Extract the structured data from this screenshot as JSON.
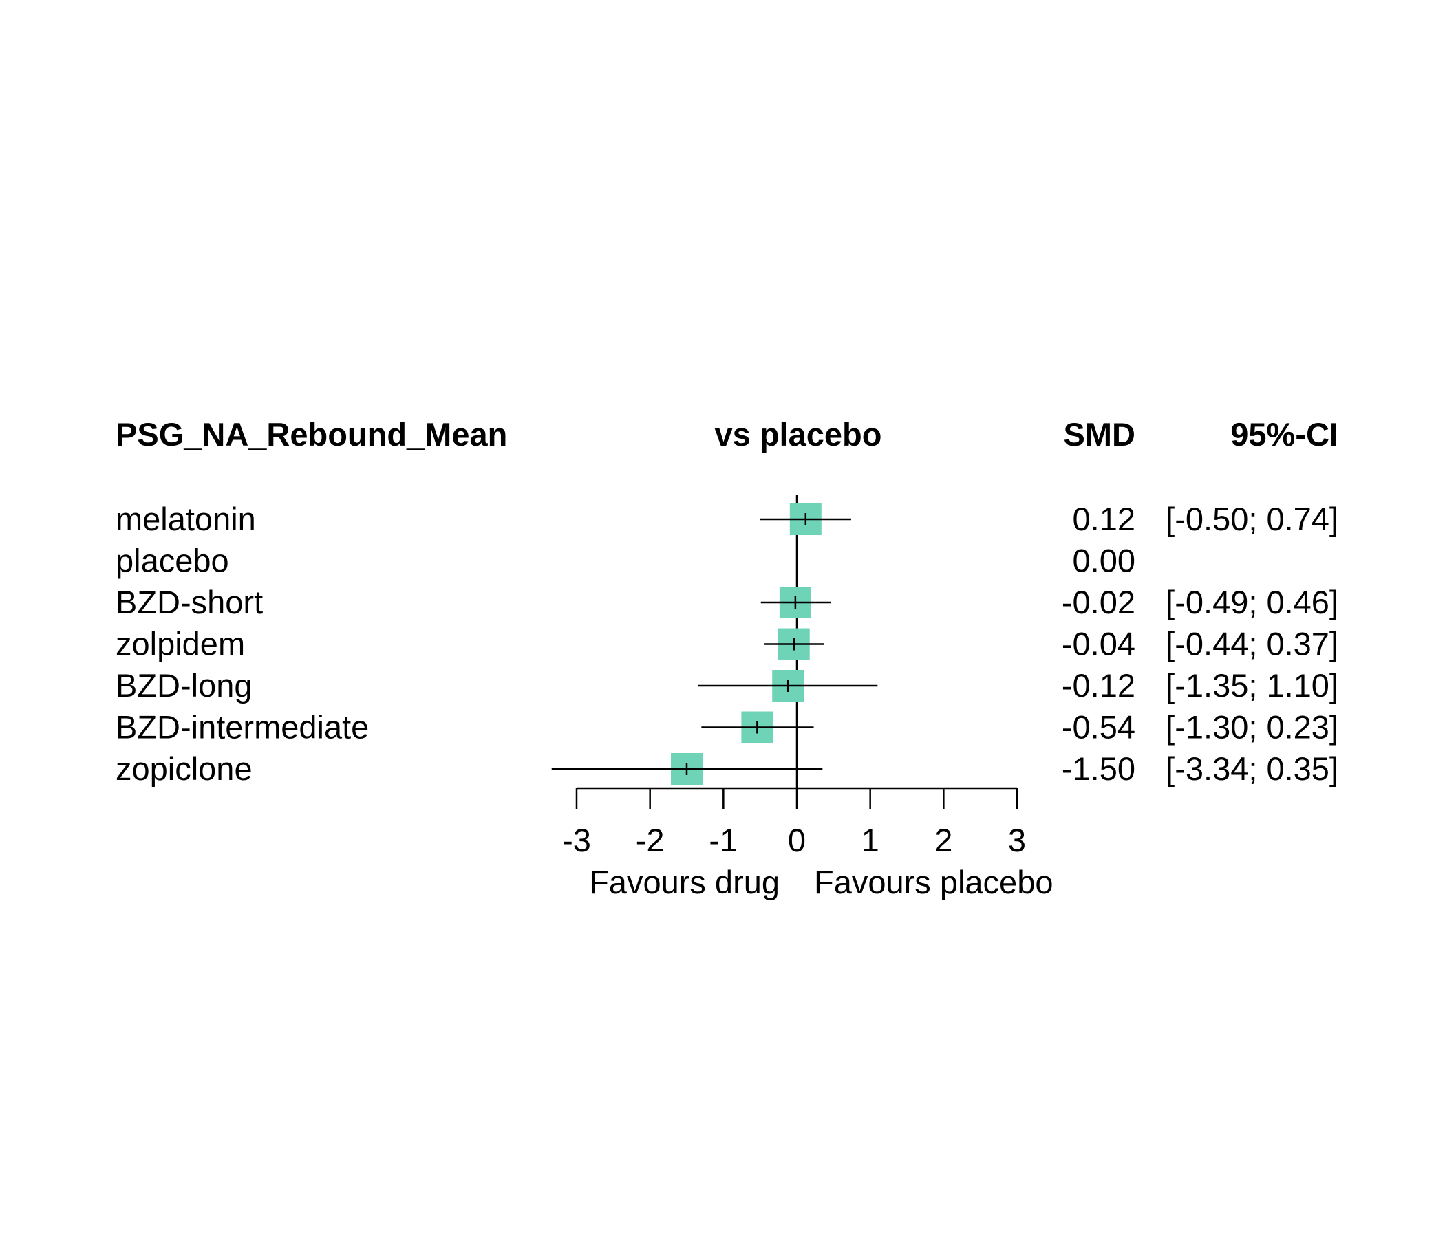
{
  "chart_data": {
    "type": "forest",
    "title": "",
    "headers": {
      "outcome": "PSG_NA_Rebound_Mean",
      "comparison": "vs placebo",
      "estimate": "SMD",
      "ci": "95%-CI"
    },
    "rows": [
      {
        "label": "melatonin",
        "smd": 0.12,
        "lower": -0.5,
        "upper": 0.74,
        "smd_text": "0.12",
        "ci_text": "[-0.50; 0.74]"
      },
      {
        "label": "placebo",
        "smd": 0.0,
        "lower": null,
        "upper": null,
        "smd_text": "0.00",
        "ci_text": ""
      },
      {
        "label": "BZD-short",
        "smd": -0.02,
        "lower": -0.49,
        "upper": 0.46,
        "smd_text": "-0.02",
        "ci_text": "[-0.49; 0.46]"
      },
      {
        "label": "zolpidem",
        "smd": -0.04,
        "lower": -0.44,
        "upper": 0.37,
        "smd_text": "-0.04",
        "ci_text": "[-0.44; 0.37]"
      },
      {
        "label": "BZD-long",
        "smd": -0.12,
        "lower": -1.35,
        "upper": 1.1,
        "smd_text": "-0.12",
        "ci_text": "[-1.35; 1.10]"
      },
      {
        "label": "BZD-intermediate",
        "smd": -0.54,
        "lower": -1.3,
        "upper": 0.23,
        "smd_text": "-0.54",
        "ci_text": "[-1.30; 0.23]"
      },
      {
        "label": "zopiclone",
        "smd": -1.5,
        "lower": -3.34,
        "upper": 0.35,
        "smd_text": "-1.50",
        "ci_text": "[-3.34; 0.35]"
      }
    ],
    "xlim": [
      -3,
      3
    ],
    "xticks": [
      -3,
      -2,
      -1,
      0,
      1,
      2,
      3
    ],
    "xlabel_left": "Favours drug",
    "xlabel_right": "Favours placebo",
    "reference_line": 0,
    "marker_color": "#6fd3b8",
    "line_color": "#000000"
  }
}
